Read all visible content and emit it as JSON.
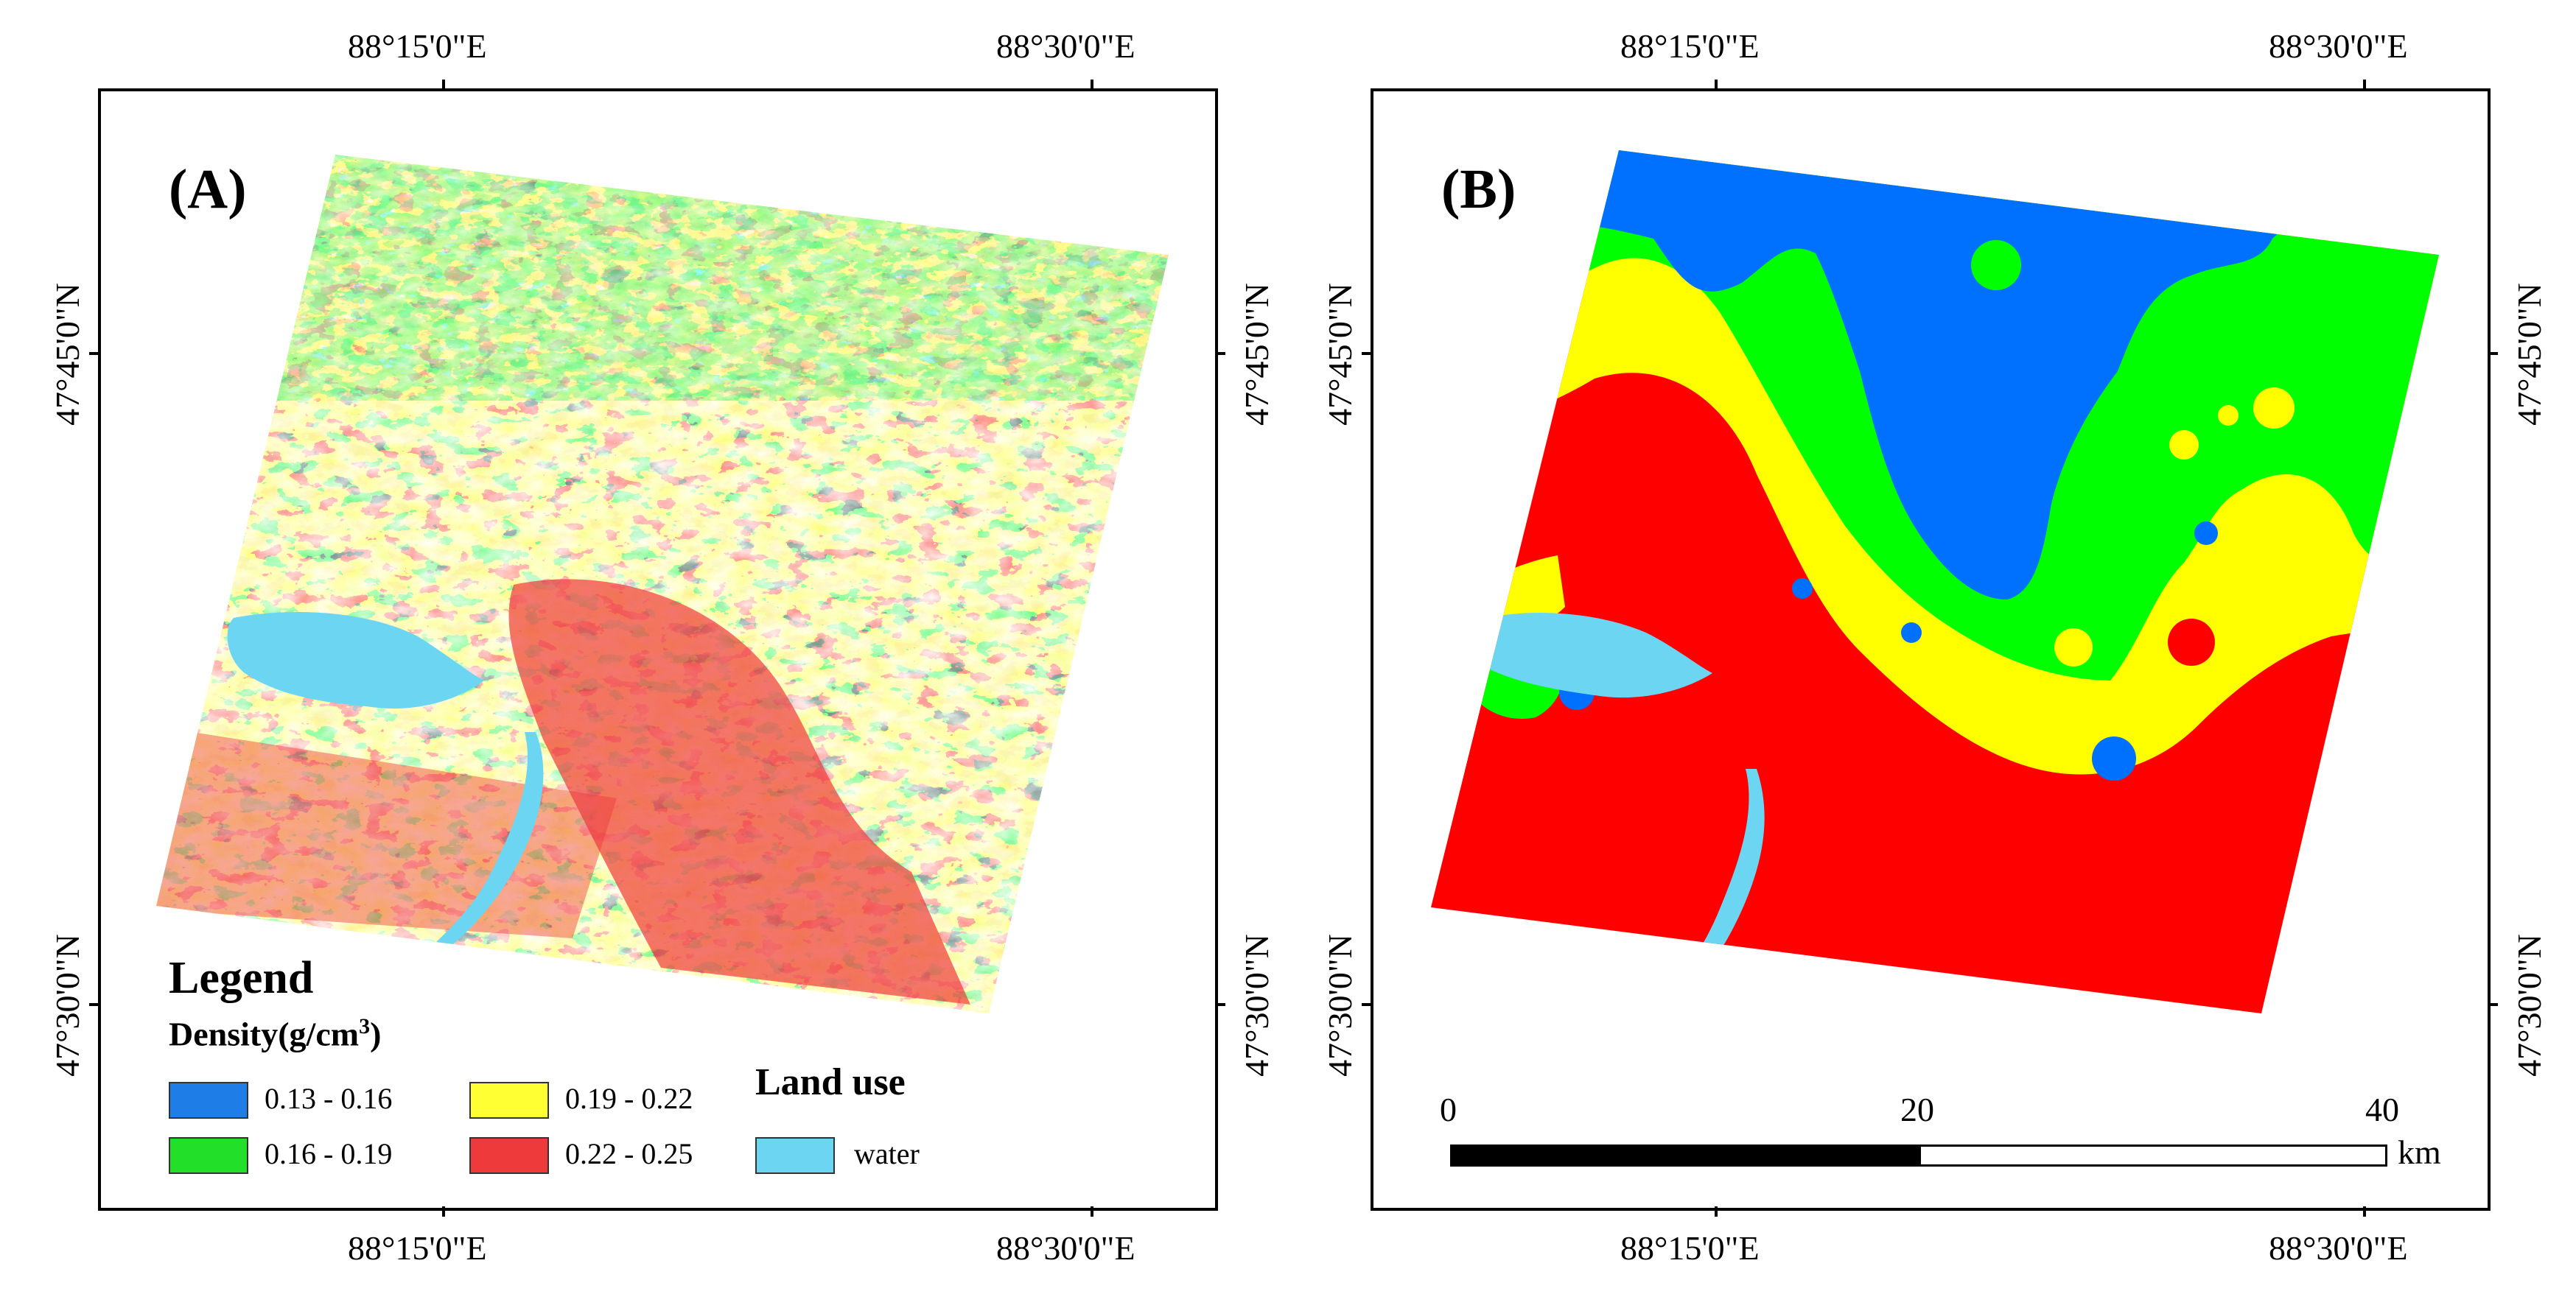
{
  "panels": [
    {
      "id": "A",
      "letter": "(A)",
      "top_lon_labels": [
        "88°15'0\"E",
        "88°30'0\"E"
      ],
      "bottom_lon_labels": [
        "88°15'0\"E",
        "88°30'0\"E"
      ],
      "left_lat_labels": [
        "47°45'0\"N",
        "47°30'0\"N"
      ],
      "right_lat_labels": [
        "47°45'0\"N",
        "47°30'0\"N"
      ]
    },
    {
      "id": "B",
      "letter": "(B)",
      "top_lon_labels": [
        "88°15'0\"E",
        "88°30'0\"E"
      ],
      "bottom_lon_labels": [
        "88°15'0\"E",
        "88°30'0\"E"
      ],
      "left_lat_labels": [
        "47°45'0\"N",
        "47°30'0\"N"
      ],
      "right_lat_labels": [
        "47°45'0\"N",
        "47°30'0\"N"
      ]
    }
  ],
  "legend": {
    "title": "Legend",
    "density_label": "Density(g/cm",
    "density_sup": "3",
    "density_close": ")",
    "classes": [
      {
        "range": "0.13 - 0.16",
        "color": "#1e7de6"
      },
      {
        "range": "0.16 - 0.19",
        "color": "#22e02a"
      },
      {
        "range": "0.19 - 0.22",
        "color": "#ffff33"
      },
      {
        "range": "0.22 - 0.25",
        "color": "#ee3a3a"
      }
    ],
    "land_use_title": "Land use",
    "land_use_item": {
      "label": "water",
      "color": "#6cd6f2"
    }
  },
  "scale_bar": {
    "labels": [
      "0",
      "20",
      "40"
    ],
    "unit": "km"
  }
}
